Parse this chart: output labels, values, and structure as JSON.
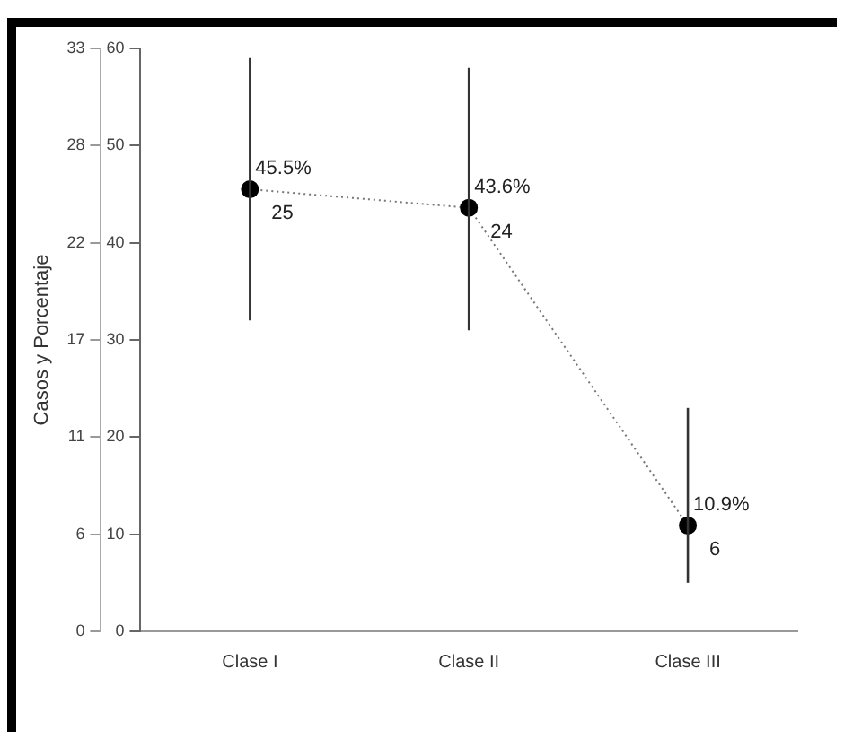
{
  "chart_data": {
    "type": "line",
    "y2label": "Casos y Porcentaje",
    "categories": [
      "Clase I",
      "Clase II",
      "Clase III"
    ],
    "series": [
      {
        "color": "#000000",
        "values": [
          45.5,
          43.6,
          10.9
        ],
        "errors": [
          [
            32,
            59
          ],
          [
            31,
            58
          ],
          [
            5,
            23
          ]
        ],
        "value_labels": [
          "45.5%",
          "43.6%",
          "10.9%"
        ]
      }
    ],
    "annotations": [
      {
        "text": "25",
        "x": "Clase I",
        "y": 45.5
      },
      {
        "text": "24",
        "x": "Clase II",
        "y": 43.6
      },
      {
        "text": "6",
        "x": "Clase III",
        "y": 10.9
      }
    ],
    "ylim": [
      0,
      60
    ],
    "yticks": [
      0,
      10,
      20,
      30,
      40,
      50,
      60
    ],
    "y2lim": [
      0,
      33
    ],
    "y2ticks": [
      0,
      {
        "value": 5.5,
        "label": "6"
      },
      11,
      {
        "value": 16.5,
        "label": "17"
      },
      22,
      {
        "value": 27.5,
        "label": "28"
      },
      33
    ],
    "marker": "circle",
    "line_style": "dotted",
    "grid": false,
    "legend": false
  }
}
